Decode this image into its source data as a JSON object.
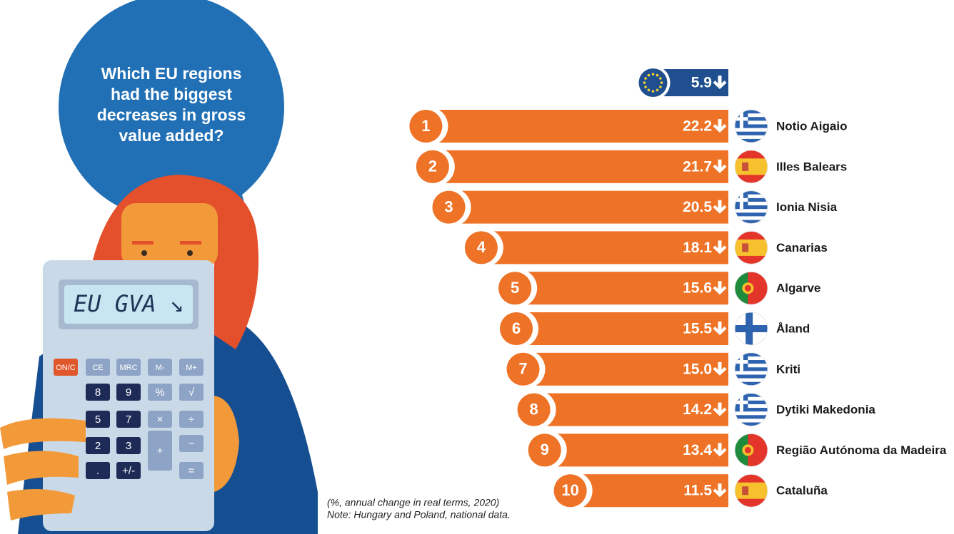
{
  "bubble": {
    "lines": [
      "Which EU regions",
      "had the biggest",
      "decreases in gross",
      "value added?"
    ]
  },
  "calculator": {
    "display": "EU GVA ↘",
    "keys": [
      "ON/C",
      "CE",
      "MRC",
      "M-",
      "M+",
      "8",
      "9",
      "%",
      "√",
      "5",
      "7",
      "×",
      "÷",
      "2",
      "3",
      "+",
      "−",
      ".",
      "+/-",
      "="
    ]
  },
  "chart_data": {
    "type": "bar",
    "orientation": "horizontal",
    "color": "#ee7326",
    "categories": [
      "Notio Aigaio",
      "Illes Balears",
      "Ionia Nisia",
      "Canarias",
      "Algarve",
      "Åland",
      "Kriti",
      "Dytiki Makedonia",
      "Região Autónoma da Madeira",
      "Cataluña"
    ],
    "ranks": [
      1,
      2,
      3,
      4,
      5,
      6,
      7,
      8,
      9,
      10
    ],
    "values": [
      22.2,
      21.7,
      20.5,
      18.1,
      15.6,
      15.5,
      15.0,
      14.2,
      13.4,
      11.5
    ],
    "value_labels": [
      "22.2",
      "21.7",
      "20.5",
      "18.1",
      "15.6",
      "15.5",
      "15.0",
      "14.2",
      "13.4",
      "11.5"
    ],
    "average": 5.9,
    "average_color": "#1f4f8f",
    "notes": [
      "(%, annual change in real terms, 2020)",
      "Note: Hungary and Poland, national data."
    ]
  }
}
